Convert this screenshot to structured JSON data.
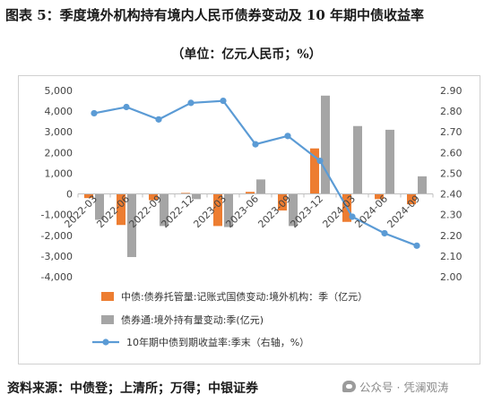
{
  "header": {
    "title": "图表 5：季度境外机构持有境内人民币债券变动及 10 年期中债收益率",
    "subtitle": "（单位：亿元人民币；%）"
  },
  "footer": {
    "source": "资料来源：中债登；上清所；万得；中银证券",
    "watermark": "公众号 · 凭澜观涛"
  },
  "chart_data": {
    "type": "bar+line",
    "categories": [
      "2022-03",
      "2022-06",
      "2022-09",
      "2022-12",
      "2023-03",
      "2023-06",
      "2023-09",
      "2023-12",
      "2024-03",
      "2024-06",
      "2024-09"
    ],
    "y_left": {
      "ylim": [
        -4000,
        5000
      ],
      "ticks": [
        "5,000",
        "4,000",
        "3,000",
        "2,000",
        "1,000",
        "0",
        "-1,000",
        "-2,000",
        "-3,000",
        "-4,000"
      ]
    },
    "y_right": {
      "ylim": [
        2.0,
        2.9
      ],
      "ticks": [
        "2.90",
        "2.80",
        "2.70",
        "2.60",
        "2.50",
        "2.40",
        "2.30",
        "2.20",
        "2.10",
        "2.00"
      ]
    },
    "series": [
      {
        "name": "中债:债券托管量:记账式国债变动:境外机构：季（亿元）",
        "type": "bar",
        "axis": "left",
        "color": "#ED7D31",
        "values": [
          -200,
          -1500,
          -300,
          50,
          -1550,
          100,
          -800,
          2200,
          -1350,
          -250,
          -500
        ]
      },
      {
        "name": "债券通:境外持有量变动:季(亿元)",
        "type": "bar",
        "axis": "left",
        "color": "#A5A5A5",
        "values": [
          -1250,
          -3050,
          -1550,
          -250,
          -1600,
          700,
          -1550,
          4750,
          3280,
          3100,
          850
        ]
      },
      {
        "name": "10年期中债到期收益率:季末（右轴，%）",
        "type": "line",
        "axis": "right",
        "color": "#5B9BD5",
        "values": [
          2.79,
          2.82,
          2.76,
          2.84,
          2.85,
          2.64,
          2.68,
          2.56,
          2.29,
          2.21,
          2.15
        ]
      }
    ],
    "legend": "bottom"
  }
}
